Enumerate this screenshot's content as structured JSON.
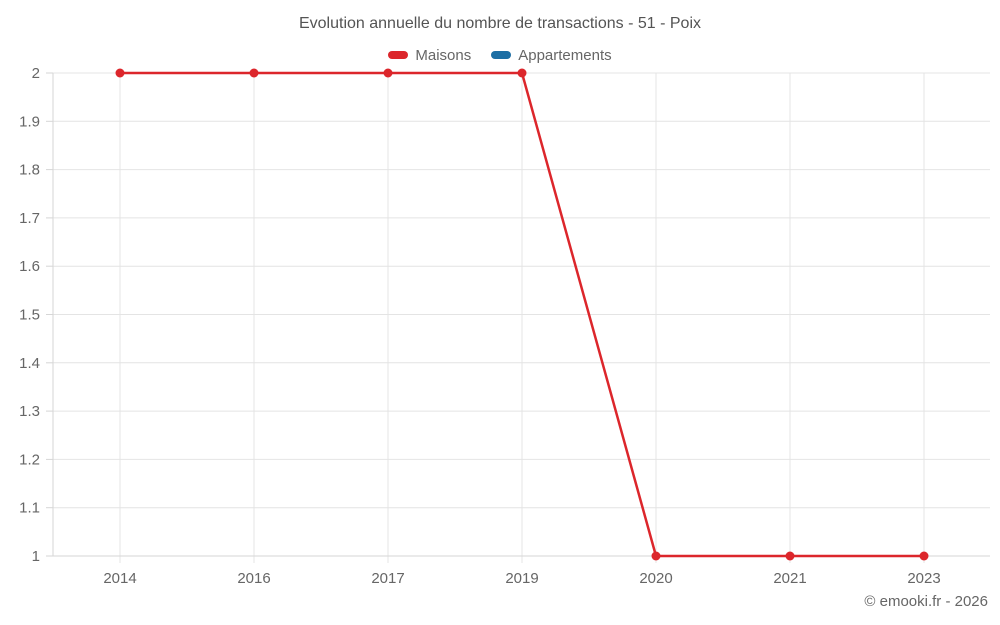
{
  "chart_data": {
    "type": "line",
    "title": "Evolution annuelle du nombre de transactions - 51 - Poix",
    "categories": [
      "2014",
      "2016",
      "2017",
      "2019",
      "2020",
      "2021",
      "2023"
    ],
    "series": [
      {
        "name": "Maisons",
        "color": "#dc262b",
        "values": [
          2,
          2,
          2,
          2,
          1,
          1,
          1
        ]
      },
      {
        "name": "Appartements",
        "color": "#1c6ea4",
        "values": []
      }
    ],
    "ylim": [
      1,
      2
    ],
    "y_ticks": [
      "2",
      "1.9",
      "1.8",
      "1.7",
      "1.6",
      "1.5",
      "1.4",
      "1.3",
      "1.2",
      "1.1",
      "1"
    ],
    "xlabel": "",
    "ylabel": "",
    "grid": true,
    "legend_position": "top"
  },
  "footer": {
    "copyright": "© emooki.fr - 2026"
  },
  "colors": {
    "grid": "#e4e4e4",
    "axis": "#d6d6d6",
    "tick_text": "#666666",
    "title_text": "#545454"
  }
}
